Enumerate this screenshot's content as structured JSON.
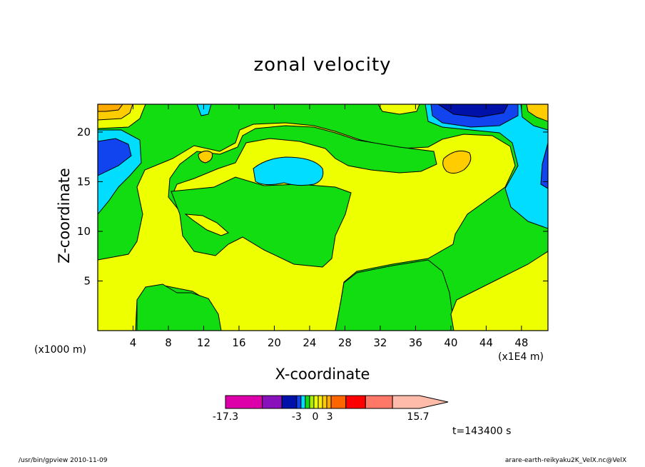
{
  "chart_data": {
    "type": "heatmap",
    "title": "zonal velocity",
    "xlabel": "X-coordinate",
    "ylabel": "Z-coordinate",
    "x_unit_left": "(x1000 m)",
    "x_unit_right": "(x1E4 m)",
    "xlim": [
      0,
      51
    ],
    "ylim": [
      0,
      22.8
    ],
    "x_ticks": [
      "4",
      "8",
      "12",
      "16",
      "20",
      "24",
      "28",
      "32",
      "36",
      "40",
      "44",
      "48"
    ],
    "y_ticks": [
      "5",
      "10",
      "15",
      "20"
    ],
    "colorbar": {
      "min_label": "-17.3",
      "max_label": "15.7",
      "mid_labels": [
        "-3",
        "0",
        "3"
      ],
      "colors": [
        "#dd00aa",
        "#8811bb",
        "#0011aa",
        "#1144ee",
        "#00ddff",
        "#11dd11",
        "#aaee00",
        "#eeff00",
        "#ffee00",
        "#ffcc00",
        "#ffaa00",
        "#ff6600",
        "#ff0000",
        "#ff7766",
        "#ffbbaa"
      ],
      "units": [
        3,
        1.6,
        1.2,
        0.35,
        0.35,
        0.35,
        0.35,
        0.35,
        0.35,
        0.35,
        0.35,
        1.2,
        1.6,
        2.2,
        2.2
      ]
    },
    "annotation": "t=143400 s",
    "footer_left": "/usr/bin/gpview   2010-11-09",
    "footer_right": "arare-earth-reikyaku2K_VelX.nc@VelX"
  }
}
